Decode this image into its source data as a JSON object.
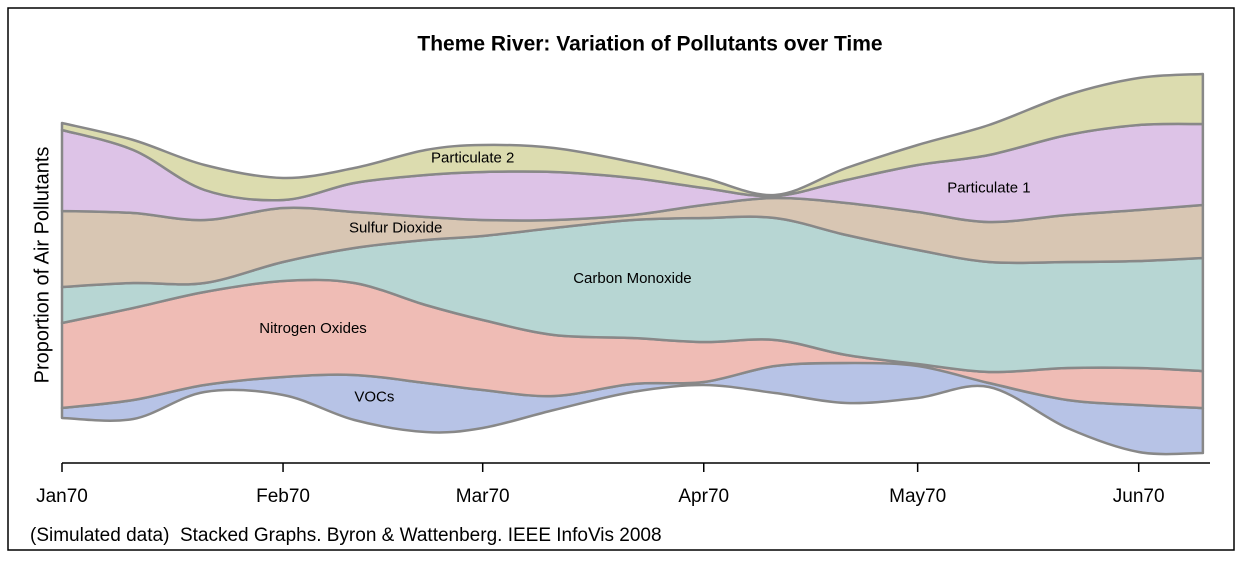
{
  "chart_data": {
    "type": "streamgraph",
    "title": "Theme River: Variation of Pollutants over Time",
    "ylabel": "Proportion of Air Pollutants",
    "footnote": "(Simulated data)  Stacked Graphs. Byron & Wattenberg. IEEE InfoVis 2008",
    "x": [
      0,
      10,
      20,
      31,
      41,
      51,
      59,
      69,
      80,
      90,
      100,
      110,
      120,
      130,
      141,
      151,
      160
    ],
    "xlim": [
      0,
      161
    ],
    "xticks": [
      {
        "value": 0,
        "label": "Jan70"
      },
      {
        "value": 31,
        "label": "Feb70"
      },
      {
        "value": 59,
        "label": "Mar70"
      },
      {
        "value": 90,
        "label": "Apr70"
      },
      {
        "value": 120,
        "label": "May70"
      },
      {
        "value": 151,
        "label": "Jun70"
      }
    ],
    "ylim": [
      0,
      400
    ],
    "series": [
      {
        "name": "VOCs",
        "color": "#b7c3e6",
        "base": [
          45,
          44,
          71,
          68,
          43,
          31,
          35,
          53,
          71,
          78,
          70,
          60,
          65,
          76,
          35,
          11,
          10
        ],
        "values": [
          10,
          19,
          7,
          18,
          45,
          49,
          38,
          14,
          8,
          3,
          27,
          40,
          35,
          4,
          28,
          47,
          45
        ]
      },
      {
        "name": "Nitrogen Oxides",
        "color": "#efbcb5",
        "base": [
          55,
          63,
          78,
          86,
          88,
          80,
          73,
          67,
          79,
          81,
          97,
          100,
          97,
          80,
          63,
          58,
          55
        ],
        "values": [
          85,
          92,
          93,
          96,
          92,
          78,
          70,
          61,
          46,
          40,
          26,
          8,
          2,
          11,
          32,
          37,
          37
        ]
      },
      {
        "name": "Carbon Monoxide",
        "color": "#b7d6d3",
        "base": [
          140,
          155,
          171,
          182,
          180,
          158,
          143,
          128,
          125,
          121,
          123,
          108,
          99,
          91,
          95,
          95,
          92
        ],
        "values": [
          36,
          25,
          9,
          19,
          35,
          65,
          84,
          107,
          118,
          124,
          122,
          120,
          114,
          110,
          106,
          107,
          113
        ]
      },
      {
        "name": "Sulfur Dioxide",
        "color": "#d8c6b3",
        "base": [
          176,
          180,
          180,
          201,
          215,
          223,
          227,
          235,
          243,
          245,
          245,
          228,
          213,
          201,
          201,
          202,
          205
        ],
        "values": [
          76,
          70,
          63,
          54,
          36,
          23,
          16,
          8,
          5,
          13,
          20,
          32,
          38,
          40,
          47,
          51,
          53
        ]
      },
      {
        "name": "Particulate 1",
        "color": "#ddc3e7",
        "base": [
          252,
          250,
          243,
          255,
          251,
          246,
          243,
          243,
          248,
          258,
          265,
          260,
          251,
          241,
          248,
          253,
          258
        ],
        "values": [
          81,
          63,
          30,
          8,
          29,
          42,
          48,
          48,
          37,
          17,
          2,
          23,
          47,
          67,
          80,
          85,
          81
        ]
      },
      {
        "name": "Particulate 2",
        "color": "#dcdcaf",
        "base": [
          333,
          313,
          273,
          263,
          280,
          288,
          291,
          291,
          285,
          275,
          267,
          283,
          298,
          308,
          328,
          338,
          339
        ],
        "values": [
          7,
          10,
          25,
          22,
          15,
          25,
          27,
          24,
          16,
          10,
          1,
          12,
          20,
          30,
          40,
          47,
          50
        ]
      }
    ]
  }
}
